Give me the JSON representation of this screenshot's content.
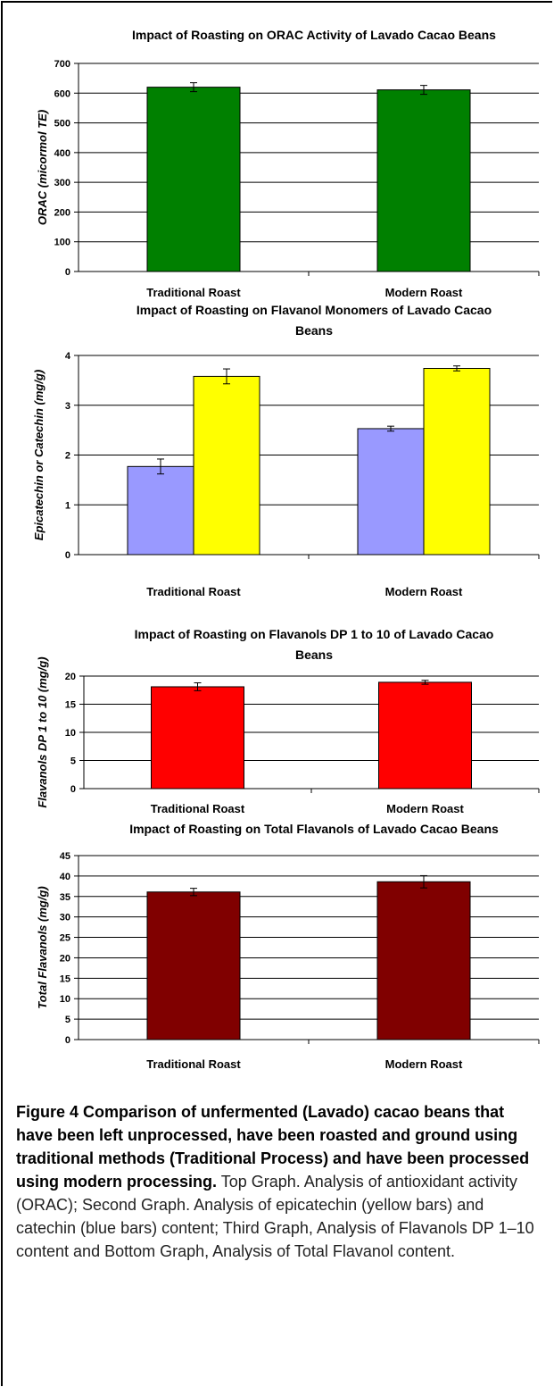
{
  "chart_data": [
    {
      "type": "bar",
      "title": "Impact of Roasting on ORAC Activity of Lavado Cacao Beans",
      "ylabel": "ORAC (micormol TE)",
      "categories": [
        "Traditional Roast",
        "Modern Roast"
      ],
      "ylim": [
        0,
        700
      ],
      "yticks": [
        0,
        100,
        200,
        300,
        400,
        500,
        600,
        700
      ],
      "grid": true,
      "series": [
        {
          "values": [
            620,
            611
          ],
          "errors": [
            15,
            15
          ],
          "color": "#008000"
        }
      ]
    },
    {
      "type": "bar",
      "title": "Impact of Roasting on Flavanol Monomers of Lavado Cacao Beans",
      "ylabel": "Epicatechin or Catechin (mg/g)",
      "categories": [
        "Traditional Roast",
        "Modern Roast"
      ],
      "ylim": [
        0,
        4
      ],
      "yticks": [
        0,
        1,
        2,
        3,
        4
      ],
      "grid": true,
      "series": [
        {
          "values": [
            1.77,
            2.53
          ],
          "errors": [
            0.15,
            0.05
          ],
          "color": "#9999FF"
        },
        {
          "values": [
            3.58,
            3.74
          ],
          "errors": [
            0.15,
            0.05
          ],
          "color": "#FFFF00"
        }
      ]
    },
    {
      "type": "bar",
      "title": "Impact of Roasting on Flavanols DP 1 to 10 of Lavado Cacao Beans",
      "ylabel": "Flavanols DP 1 to 10 (mg/g)",
      "categories": [
        "Traditional Roast",
        "Modern Roast"
      ],
      "ylim": [
        0,
        20
      ],
      "yticks": [
        0,
        5,
        10,
        15,
        20
      ],
      "grid": true,
      "series": [
        {
          "values": [
            18.1,
            18.9
          ],
          "errors": [
            0.7,
            0.35
          ],
          "color": "#FF0000"
        }
      ]
    },
    {
      "type": "bar",
      "title": "Impact of Roasting on Total Flavanols of Lavado Cacao Beans",
      "ylabel": "Total Flavanols (mg/g)",
      "categories": [
        "Traditional Roast",
        "Modern Roast"
      ],
      "ylim": [
        0,
        45
      ],
      "yticks": [
        0,
        5,
        10,
        15,
        20,
        25,
        30,
        35,
        40,
        45
      ],
      "grid": true,
      "series": [
        {
          "values": [
            36.1,
            38.6
          ],
          "errors": [
            0.9,
            1.5
          ],
          "color": "#800000"
        }
      ]
    }
  ],
  "caption": {
    "lead": "Figure 4 Comparison of unfermented (Lavado) cacao beans that have been left unprocessed, have been roasted and ground using traditional methods (Traditional Process) and have been processed using modern processing.",
    "body": " Top Graph. Analysis of antioxidant activity (ORAC); Second Graph. Analysis of epicatechin (yellow bars) and catechin (blue bars) content; Third Graph, Analysis of Flavanols DP 1–10 content and Bottom Graph, Analysis of Total Flavanol content."
  }
}
